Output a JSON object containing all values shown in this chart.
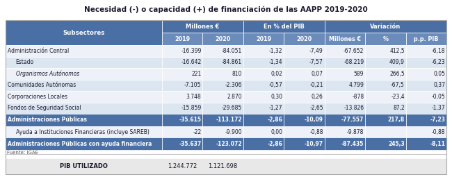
{
  "title": "Necesidad (-) o capacidad (+) de financiación de las AAPP 2019-2020",
  "col_groups": [
    {
      "label": "Millones €",
      "span": 2
    },
    {
      "label": "En % del PIB",
      "span": 2
    },
    {
      "label": "Variación",
      "span": 3
    }
  ],
  "col_headers": [
    "2019",
    "2020",
    "2019",
    "2020",
    "Millones €",
    "%",
    "p.p. PIB"
  ],
  "row_header": "Subsectores",
  "rows": [
    {
      "label": "Administración Central",
      "values": [
        "-16.399",
        "-84.051",
        "-1,32",
        "-7,49",
        "-67.652",
        "412,5",
        "-6,18"
      ],
      "bold": false,
      "indent": 0,
      "italic": false
    },
    {
      "label": "Estado",
      "values": [
        "-16.642",
        "-84.861",
        "-1,34",
        "-7,57",
        "-68.219",
        "409,9",
        "-6,23"
      ],
      "bold": false,
      "indent": 1,
      "italic": false
    },
    {
      "label": "Organismos Autónomos",
      "values": [
        "221",
        "810",
        "0,02",
        "0,07",
        "589",
        "266,5",
        "0,05"
      ],
      "bold": false,
      "indent": 1,
      "italic": true
    },
    {
      "label": "Comunidades Autónomas",
      "values": [
        "-7.105",
        "-2.306",
        "-0,57",
        "-0,21",
        "4.799",
        "-67,5",
        "0,37"
      ],
      "bold": false,
      "indent": 0,
      "italic": false
    },
    {
      "label": "Corporaciones Locales",
      "values": [
        "3.748",
        "2.870",
        "0,30",
        "0,26",
        "-878",
        "-23,4",
        "-0,05"
      ],
      "bold": false,
      "indent": 0,
      "italic": false
    },
    {
      "label": "Fondos de Seguridad Social",
      "values": [
        "-15.859",
        "-29.685",
        "-1,27",
        "-2,65",
        "-13.826",
        "87,2",
        "-1,37"
      ],
      "bold": false,
      "indent": 0,
      "italic": false
    },
    {
      "label": "Administraciones Públicas",
      "values": [
        "-35.615",
        "-113.172",
        "-2,86",
        "-10,09",
        "-77.557",
        "217,8",
        "-7,23"
      ],
      "bold": true,
      "indent": 0,
      "italic": false
    },
    {
      "label": "Ayuda a Instituciones Financieras (incluye SAREB)",
      "values": [
        "-22",
        "-9.900",
        "0,00",
        "-0,88",
        "-9.878",
        "",
        "-0,88"
      ],
      "bold": false,
      "indent": 1,
      "italic": false
    },
    {
      "label": "Administraciones Públicas con ayuda financiera",
      "values": [
        "-35.637",
        "-123.072",
        "-2,86",
        "-10,97",
        "-87.435",
        "245,3",
        "-8,11"
      ],
      "bold": true,
      "indent": 0,
      "italic": false
    }
  ],
  "footer": "Fuente: IGAE",
  "pib_label": "PIB UTILIZADO",
  "pib_values": [
    "1.244.772",
    "1.121.698"
  ],
  "header_bg": "#4a6fa5",
  "subheader_bg": "#6b8cba",
  "bold_row_bg": "#4a6fa5",
  "normal_row_bg_even": "#dce6f1",
  "normal_row_bg_odd": "#eef2f8",
  "pib_bg": "#e8e8e8",
  "header_text_color": "#ffffff",
  "normal_text_color": "#1a1a2e",
  "bold_row_text_color": "#ffffff",
  "border_color": "#ffffff"
}
